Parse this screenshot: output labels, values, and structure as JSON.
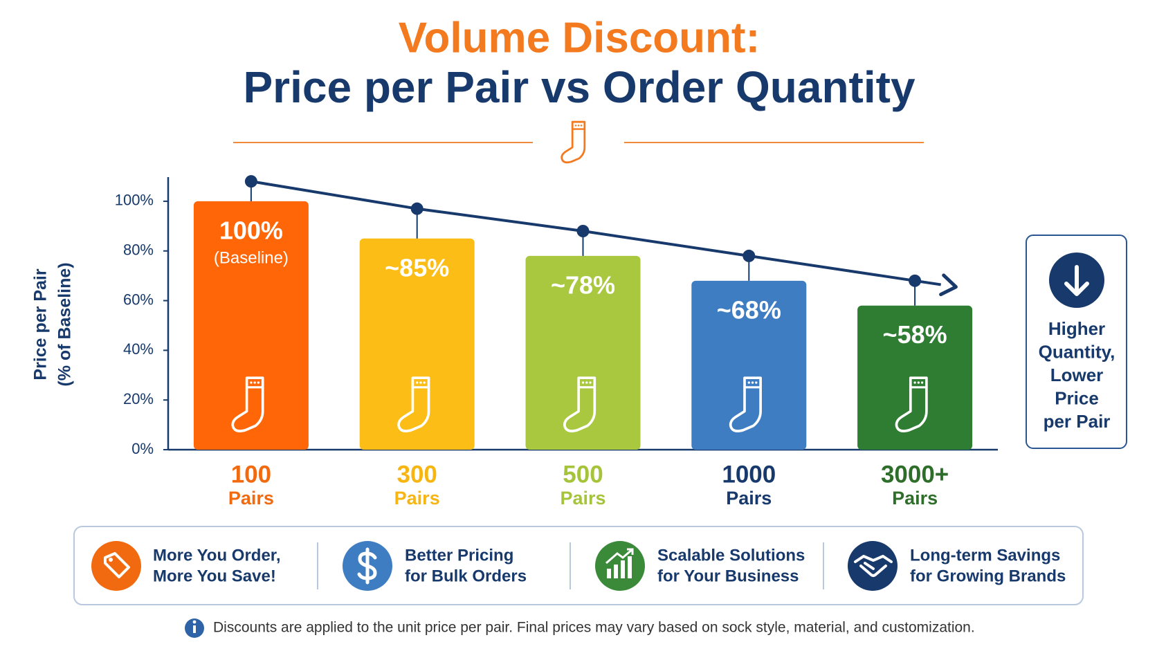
{
  "chart_data": {
    "type": "bar",
    "title": "Volume Discount:",
    "subtitle": "Price per Pair vs Order Quantity",
    "ylabel": [
      "Price per Pair",
      "(% of Baseline)"
    ],
    "categories": [
      "100",
      "300",
      "500",
      "1000",
      "3000+"
    ],
    "unit_label": "Pairs",
    "values": [
      100,
      85,
      78,
      68,
      58
    ],
    "value_labels": [
      "100%",
      "~85%",
      "~78%",
      "~68%",
      "~58%"
    ],
    "annotation": "(Baseline)",
    "colors": [
      "#ff6608",
      "#fbbd16",
      "#a9c840",
      "#3f7dc2",
      "#2f7d33"
    ],
    "category_colors": [
      "#f26a0f",
      "#f7b512",
      "#a6c43a",
      "#17396b",
      "#2e6e2a"
    ],
    "trend": {
      "values": [
        108,
        97,
        88,
        78,
        68
      ],
      "color": "#17396b"
    },
    "ylim": [
      0,
      110
    ],
    "yticks": [
      {
        "value": 0,
        "label": "0%"
      },
      {
        "value": 20,
        "label": "20%"
      },
      {
        "value": 40,
        "label": "40%"
      },
      {
        "value": 60,
        "label": "60%"
      },
      {
        "value": 80,
        "label": "80%"
      },
      {
        "value": 100,
        "label": "100%"
      }
    ],
    "grid": false
  },
  "side_note": {
    "lines": [
      "Higher",
      "Quantity,",
      "Lower",
      "Price",
      "per Pair"
    ]
  },
  "benefits": [
    {
      "lines": [
        "More You Order,",
        "More You Save!"
      ]
    },
    {
      "lines": [
        "Better Pricing",
        "for Bulk Orders"
      ]
    },
    {
      "lines": [
        "Scalable Solutions",
        "for Your Business"
      ]
    },
    {
      "lines": [
        "Long-term Savings",
        "for Growing Brands"
      ]
    }
  ],
  "footnote": "Discounts are applied to the unit price per pair. Final prices may vary based on sock style, material, and customization."
}
